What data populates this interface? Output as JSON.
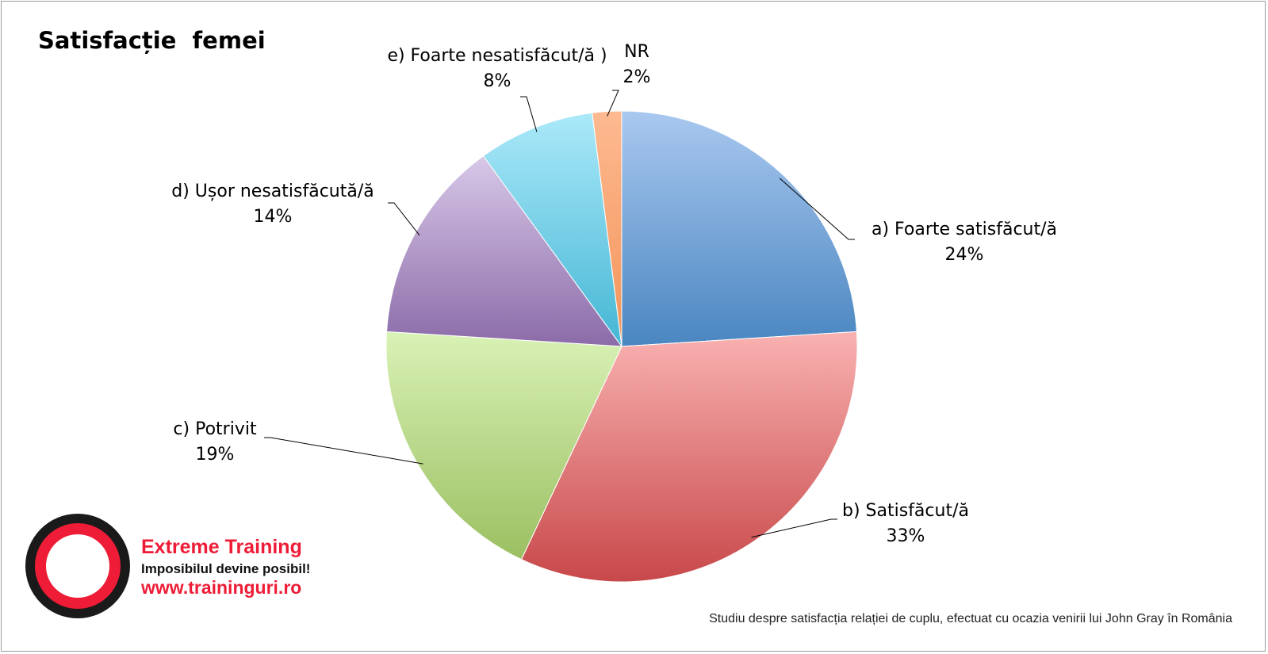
{
  "chart_data": {
    "type": "pie",
    "title": "Satisfacție  femei",
    "slices": [
      {
        "label": "a) Foarte satisfăcut/ă",
        "value": 24,
        "value_label": "24%",
        "color_top": "#a9c8ef",
        "color_bottom": "#4a86c1"
      },
      {
        "label": "b) Satisfăcut/ă",
        "value": 33,
        "value_label": "33%",
        "color_top": "#f9b2b1",
        "color_bottom": "#c8484a"
      },
      {
        "label": "c) Potrivit",
        "value": 19,
        "value_label": "19%",
        "color_top": "#d9f2b6",
        "color_bottom": "#9bbf61"
      },
      {
        "label": "d) Ușor nesatisfăcută/ă",
        "value": 14,
        "value_label": "14%",
        "color_top": "#d8c8e8",
        "color_bottom": "#8b6ba8"
      },
      {
        "label": "e) Foarte nesatisfăcut/ă )",
        "value": 8,
        "value_label": "8%",
        "color_top": "#abe9f9",
        "color_bottom": "#45b6d4"
      },
      {
        "label": "NR",
        "value": 2,
        "value_label": "2%",
        "color_top": "#fdb990",
        "color_bottom": "#f4945a"
      }
    ]
  },
  "brand": {
    "name": "Extreme Training",
    "slogan": "Imposibilul devine posibil!",
    "url": "www.traininguri.ro",
    "accent_color": "#ee1c36"
  },
  "footnote": "Studiu despre satisfacția relației de cuplu, efectuat cu ocazia venirii lui John Gray în România"
}
